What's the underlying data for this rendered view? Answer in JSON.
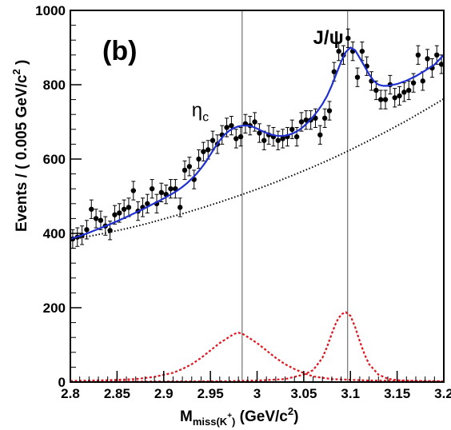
{
  "chart_data": {
    "type": "scatter",
    "panel_label": "(b)",
    "xlabel": {
      "main": "M",
      "sub": "miss(K",
      "sup": "+",
      "sub_end": ")",
      "unit_pre": " (GeV/c",
      "unit_sup": "2",
      "unit_post": ")"
    },
    "ylabel": {
      "pre": "Events / ( 0.005 GeV/c",
      "sup": "2",
      "post": " )"
    },
    "xlim": [
      2.8,
      3.2
    ],
    "ylim": [
      0,
      1000
    ],
    "xticks": [
      2.8,
      2.85,
      2.9,
      2.95,
      3.0,
      3.05,
      3.1,
      3.15,
      3.2
    ],
    "xtick_labels": [
      "2.8",
      "2.85",
      "2.9",
      "2.95",
      "3",
      "3.05",
      "3.1",
      "3.15",
      "3.2"
    ],
    "yticks": [
      0,
      200,
      400,
      600,
      800,
      1000
    ],
    "ytick_labels": [
      "0",
      "200",
      "400",
      "600",
      "800",
      "1000"
    ],
    "vertical_lines": [
      2.984,
      3.097
    ],
    "annotations": [
      {
        "main": "η",
        "sub": "c",
        "x": 2.93,
        "y": 715
      },
      {
        "main": "J/ψ",
        "x": 3.06,
        "y": 910
      }
    ],
    "series": [
      {
        "style": "points-with-errors",
        "color": "#000000",
        "x": [
          2.8025,
          2.8075,
          2.8125,
          2.8175,
          2.8225,
          2.8275,
          2.8325,
          2.8375,
          2.8425,
          2.8475,
          2.8525,
          2.8575,
          2.8625,
          2.8675,
          2.8725,
          2.8775,
          2.8825,
          2.8875,
          2.8925,
          2.8975,
          2.9025,
          2.9075,
          2.9125,
          2.9175,
          2.9225,
          2.9275,
          2.9325,
          2.9375,
          2.9425,
          2.9475,
          2.9525,
          2.9575,
          2.9625,
          2.9675,
          2.9725,
          2.9775,
          2.9825,
          2.9875,
          2.9925,
          2.9975,
          3.0025,
          3.0075,
          3.0125,
          3.0175,
          3.0225,
          3.0275,
          3.0325,
          3.0375,
          3.0425,
          3.0475,
          3.0525,
          3.0575,
          3.0625,
          3.0675,
          3.0725,
          3.0775,
          3.0825,
          3.0875,
          3.0925,
          3.0975,
          3.1025,
          3.1075,
          3.1125,
          3.1175,
          3.1225,
          3.1275,
          3.1325,
          3.1375,
          3.1425,
          3.1475,
          3.1525,
          3.1575,
          3.1625,
          3.1675,
          3.1725,
          3.1775,
          3.1825,
          3.1875,
          3.1925,
          3.1975
        ],
        "y": [
          385,
          390,
          395,
          410,
          465,
          440,
          435,
          420,
          408,
          450,
          455,
          465,
          470,
          515,
          460,
          470,
          480,
          520,
          480,
          510,
          505,
          520,
          520,
          470,
          570,
          580,
          545,
          600,
          620,
          625,
          650,
          640,
          665,
          685,
          690,
          655,
          660,
          695,
          690,
          700,
          670,
          650,
          665,
          660,
          650,
          655,
          660,
          680,
          660,
          700,
          705,
          705,
          710,
          665,
          710,
          730,
          835,
          890,
          880,
          925,
          890,
          820,
          890,
          850,
          810,
          785,
          760,
          760,
          800,
          765,
          770,
          780,
          785,
          805,
          880,
          810,
          870,
          845,
          880,
          855
        ],
        "err": 25
      },
      {
        "style": "line",
        "name": "fit",
        "color": "#1f2fd0",
        "x": [
          2.8,
          2.81,
          2.82,
          2.83,
          2.84,
          2.85,
          2.86,
          2.87,
          2.88,
          2.89,
          2.9,
          2.91,
          2.915,
          2.92,
          2.925,
          2.93,
          2.935,
          2.94,
          2.945,
          2.95,
          2.955,
          2.96,
          2.965,
          2.97,
          2.975,
          2.98,
          2.985,
          2.99,
          2.995,
          3.0,
          3.005,
          3.01,
          3.015,
          3.02,
          3.025,
          3.03,
          3.035,
          3.04,
          3.045,
          3.05,
          3.055,
          3.06,
          3.065,
          3.07,
          3.075,
          3.08,
          3.085,
          3.09,
          3.095,
          3.1,
          3.105,
          3.11,
          3.115,
          3.12,
          3.125,
          3.13,
          3.135,
          3.14,
          3.15,
          3.16,
          3.17,
          3.18,
          3.19,
          3.2
        ],
        "y": [
          385,
          393,
          402,
          412,
          422,
          433,
          444,
          456,
          468,
          481,
          494,
          508,
          516,
          525,
          535,
          547,
          560,
          575,
          592,
          612,
          632,
          650,
          665,
          676,
          683,
          688,
          690,
          690,
          687,
          682,
          676,
          670,
          666,
          663,
          662,
          663,
          666,
          671,
          678,
          688,
          700,
          714,
          730,
          748,
          770,
          798,
          830,
          862,
          888,
          900,
          893,
          872,
          850,
          828,
          810,
          800,
          797,
          797,
          802,
          811,
          823,
          838,
          854,
          880
        ]
      },
      {
        "style": "dotted",
        "name": "background",
        "color": "#000000",
        "x": [
          2.8,
          2.82,
          2.84,
          2.86,
          2.88,
          2.9,
          2.92,
          2.94,
          2.96,
          2.98,
          3.0,
          3.02,
          3.04,
          3.06,
          3.08,
          3.1,
          3.12,
          3.14,
          3.16,
          3.18,
          3.2
        ],
        "y": [
          383,
          392,
          402,
          413,
          425,
          439,
          453,
          468,
          484,
          501,
          519,
          538,
          558,
          579,
          601,
          625,
          650,
          676,
          703,
          732,
          762
        ]
      },
      {
        "style": "dashed",
        "name": "eta_c signal",
        "color": "#e0141e",
        "x": [
          2.8,
          2.84,
          2.87,
          2.89,
          2.91,
          2.92,
          2.93,
          2.94,
          2.95,
          2.96,
          2.965,
          2.97,
          2.975,
          2.98,
          2.985,
          2.99,
          2.995,
          3.0,
          3.01,
          3.02,
          3.03,
          3.04,
          3.05,
          3.06,
          3.08,
          3.12,
          3.16,
          3.2
        ],
        "y": [
          3,
          5,
          8,
          14,
          25,
          35,
          48,
          65,
          85,
          105,
          113,
          121,
          129,
          133,
          129,
          121,
          113,
          105,
          85,
          65,
          48,
          35,
          24,
          15,
          8,
          4,
          3,
          2
        ]
      },
      {
        "style": "dashed",
        "name": "J/psi signal",
        "color": "#e0141e",
        "x": [
          2.8,
          2.96,
          3.0,
          3.03,
          3.05,
          3.06,
          3.07,
          3.075,
          3.08,
          3.085,
          3.09,
          3.095,
          3.1,
          3.105,
          3.11,
          3.115,
          3.12,
          3.13,
          3.14,
          3.15,
          3.17,
          3.2
        ],
        "y": [
          1,
          2,
          4,
          8,
          20,
          32,
          65,
          95,
          130,
          162,
          182,
          188,
          178,
          148,
          110,
          75,
          48,
          20,
          9,
          5,
          3,
          2
        ]
      }
    ]
  }
}
